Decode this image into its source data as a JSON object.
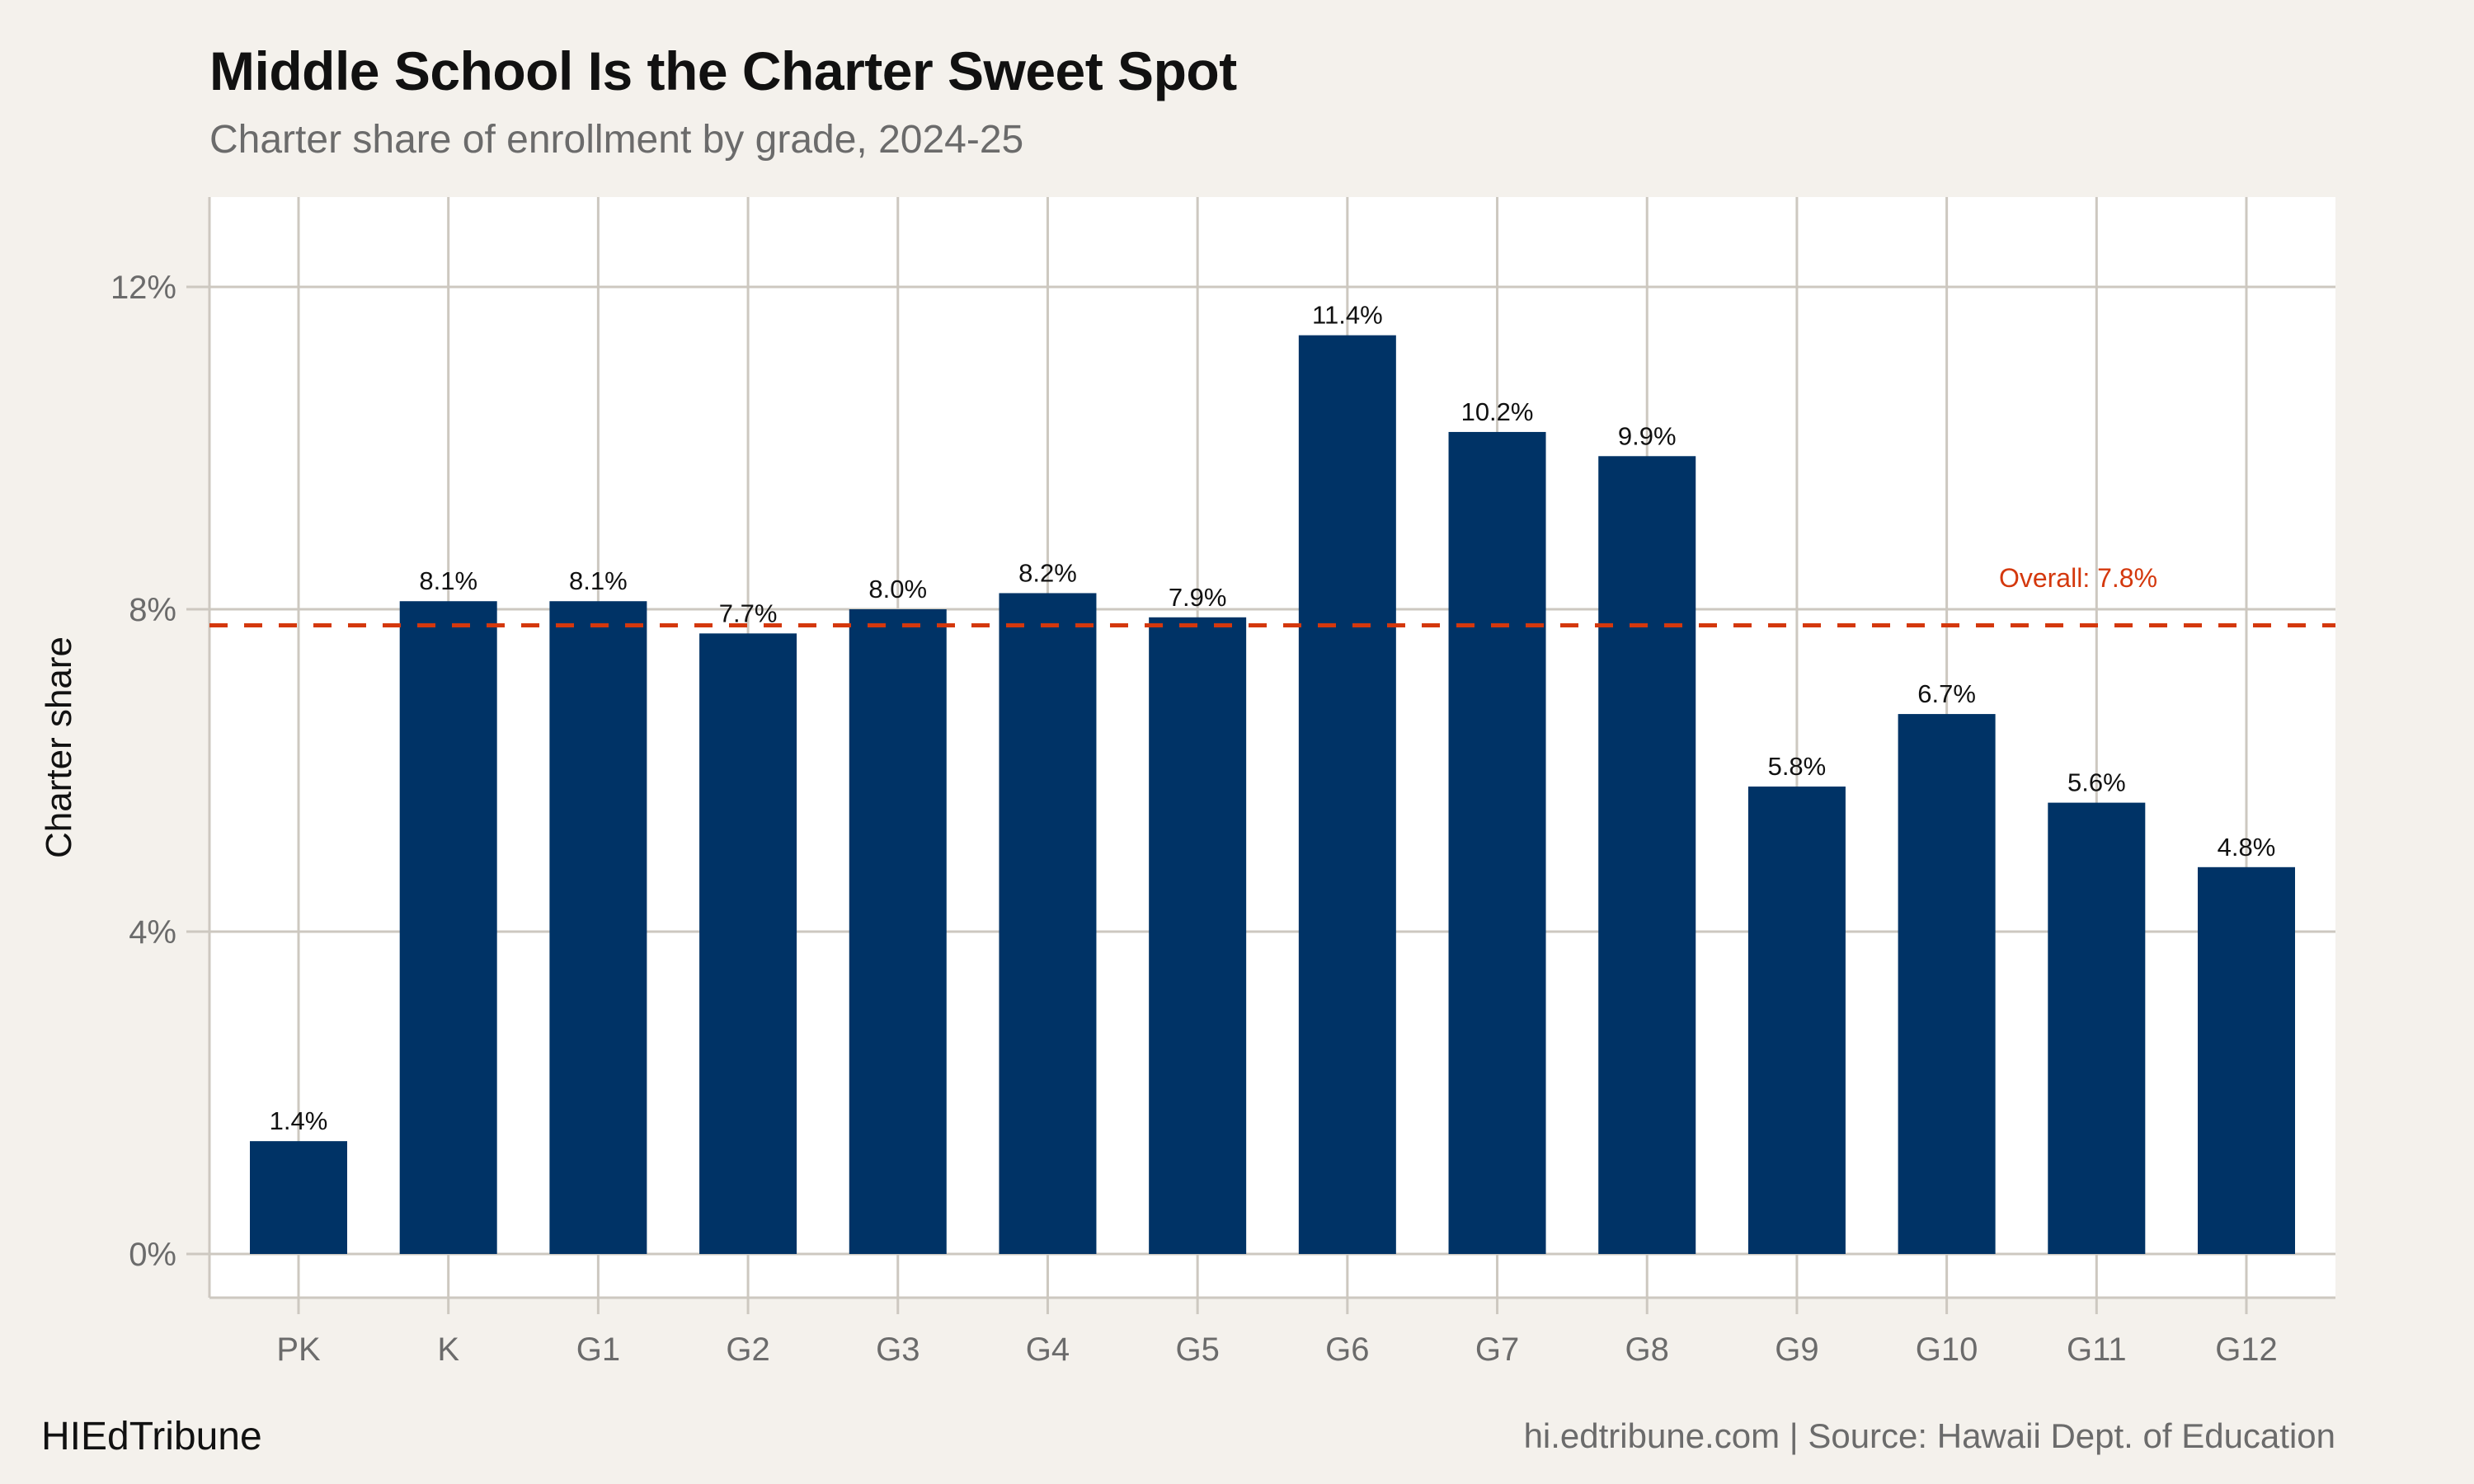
{
  "header": {
    "title": "Middle School Is the Charter Sweet Spot",
    "subtitle": "Charter share of enrollment by grade, 2024-25"
  },
  "footer": {
    "brand": "HIEdTribune",
    "source": "hi.edtribune.com | Source: Hawaii Dept. of Education"
  },
  "chart_data": {
    "type": "bar",
    "title": "Middle School Is the Charter Sweet Spot",
    "subtitle": "Charter share of enrollment by grade, 2024-25",
    "xlabel": "",
    "ylabel": "Charter share",
    "categories": [
      "PK",
      "K",
      "G1",
      "G2",
      "G3",
      "G4",
      "G5",
      "G6",
      "G7",
      "G8",
      "G9",
      "G10",
      "G11",
      "G12"
    ],
    "values": [
      1.4,
      8.1,
      8.1,
      7.7,
      8.0,
      8.2,
      7.9,
      11.4,
      10.2,
      9.9,
      5.8,
      6.7,
      5.6,
      4.8
    ],
    "data_labels": [
      "1.4%",
      "8.1%",
      "8.1%",
      "7.7%",
      "8.0%",
      "8.2%",
      "7.9%",
      "11.4%",
      "10.2%",
      "9.9%",
      "5.8%",
      "6.7%",
      "5.6%",
      "4.8%"
    ],
    "ylim": [
      -0.55,
      13.1
    ],
    "yticks": [
      0,
      4,
      8,
      12
    ],
    "ytick_labels": [
      "0%",
      "4%",
      "8%",
      "12%"
    ],
    "grid": true,
    "reference_line": {
      "value": 7.8,
      "label": "Overall: 7.8%",
      "style": "dashed"
    },
    "colors": {
      "bar": "#003366",
      "reference": "#d4380d",
      "grid": "#cdc8c0",
      "background": "#f4f1ec",
      "panel": "#ffffff"
    }
  }
}
